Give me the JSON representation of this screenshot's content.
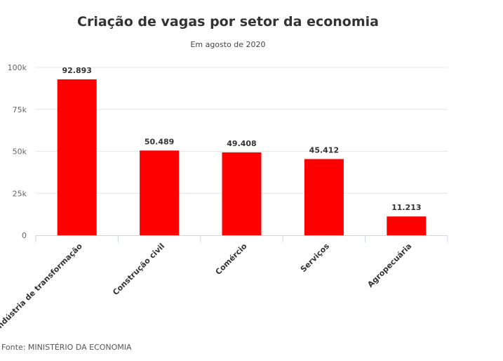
{
  "chart_data": {
    "type": "bar",
    "title": "Criação de vagas por setor da economia",
    "subtitle": "Em agosto de 2020",
    "categories": [
      "Indústria de transformação",
      "Construção civil",
      "Comércio",
      "Serviços",
      "Agropecuária"
    ],
    "values": [
      92893,
      50489,
      49408,
      45412,
      11213
    ],
    "data_labels": [
      "92.893",
      "50.489",
      "49.408",
      "45.412",
      "11.213"
    ],
    "yticks": [
      0,
      25000,
      50000,
      75000,
      100000
    ],
    "ytick_labels": [
      "0",
      "25k",
      "50k",
      "75k",
      "100k"
    ],
    "ylim": [
      0,
      100000
    ],
    "grid": true,
    "bar_color": "#ff0000",
    "source": "Fonte: MINISTÉRIO DA ECONOMIA"
  }
}
